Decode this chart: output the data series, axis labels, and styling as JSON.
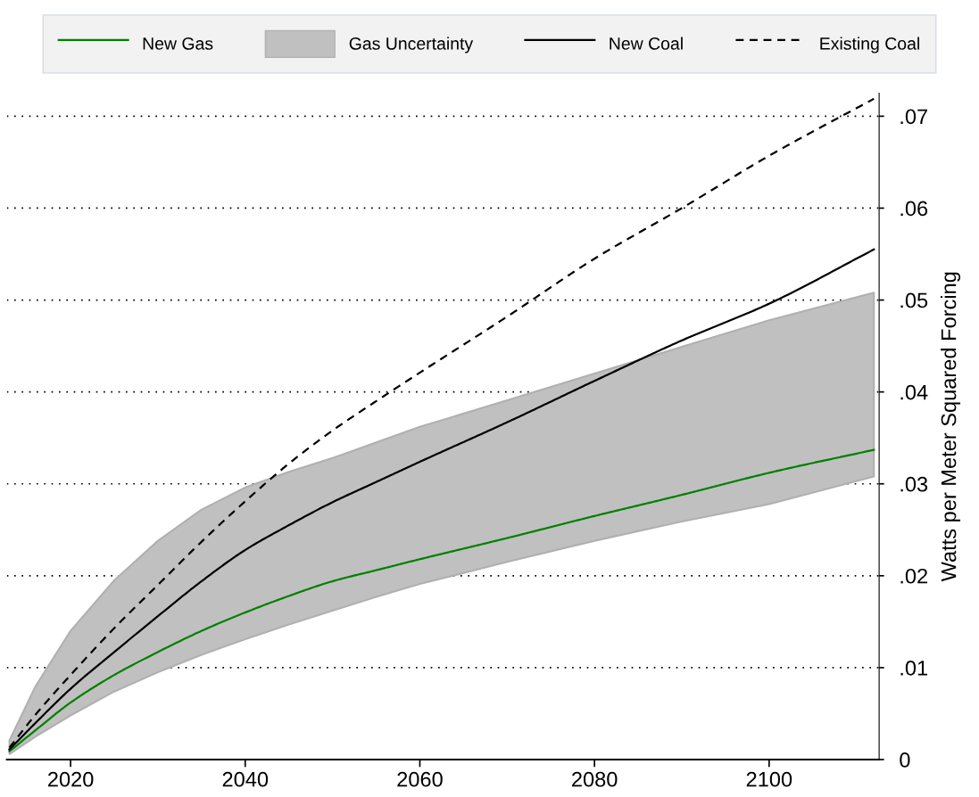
{
  "chart_data": {
    "type": "line",
    "ylabel": "Watts per Meter Squared Forcing",
    "x": [
      2013,
      2016,
      2020,
      2025,
      2030,
      2035,
      2040,
      2045,
      2050,
      2055,
      2060,
      2070,
      2080,
      2090,
      2100,
      2112
    ],
    "series": [
      {
        "name": "New Gas",
        "type": "line",
        "color": "#008000",
        "line_style": "solid",
        "values": [
          0.0009,
          0.0032,
          0.0062,
          0.0092,
          0.0117,
          0.014,
          0.016,
          0.0178,
          0.0194,
          0.0206,
          0.0218,
          0.0241,
          0.0265,
          0.0288,
          0.0312,
          0.0337
        ]
      },
      {
        "name": "Gas Uncertainty",
        "color": "#c0c0c0",
        "values": [
          null,
          null,
          null,
          null,
          null,
          null,
          null,
          null,
          null,
          null,
          null,
          null,
          null,
          null,
          null,
          null
        ],
        "lower": [
          0.0006,
          0.0025,
          0.0048,
          0.0074,
          0.0095,
          0.0114,
          0.0131,
          0.0147,
          0.0162,
          0.0177,
          0.0191,
          0.0215,
          0.0238,
          0.0259,
          0.0278,
          0.0308
        ],
        "upper": [
          0.0021,
          0.008,
          0.014,
          0.0195,
          0.0238,
          0.0272,
          0.0296,
          0.0313,
          0.0328,
          0.0345,
          0.0362,
          0.0391,
          0.042,
          0.0449,
          0.0478,
          0.0508
        ]
      },
      {
        "name": "New Coal",
        "type": "line",
        "color": "#000000",
        "line_style": "solid",
        "values": [
          0.0011,
          0.004,
          0.0077,
          0.0117,
          0.0156,
          0.0194,
          0.0228,
          0.0255,
          0.028,
          0.0302,
          0.0324,
          0.0367,
          0.0412,
          0.0456,
          0.0496,
          0.0555
        ]
      },
      {
        "name": "Existing Coal",
        "type": "line",
        "color": "#000000",
        "line_style": "dashed",
        "values": [
          0.0013,
          0.0049,
          0.0092,
          0.0143,
          0.019,
          0.0237,
          0.0281,
          0.0322,
          0.0358,
          0.039,
          0.0421,
          0.0482,
          0.0545,
          0.06,
          0.0657,
          0.0719
        ]
      }
    ],
    "xlim": [
      2012.7,
      2112.6
    ],
    "xticks": [
      2020,
      2040,
      2060,
      2080,
      2100
    ],
    "ylim": [
      0,
      0.0725
    ],
    "yticks": [
      {
        "value": 0,
        "label": "0"
      },
      {
        "value": 0.01,
        "label": ".01"
      },
      {
        "value": 0.02,
        "label": ".02"
      },
      {
        "value": 0.03,
        "label": ".03"
      },
      {
        "value": 0.04,
        "label": ".04"
      },
      {
        "value": 0.05,
        "label": ".05"
      },
      {
        "value": 0.06,
        "label": ".06"
      },
      {
        "value": 0.07,
        "label": ".07"
      }
    ],
    "grid": "y",
    "legend": "top"
  }
}
